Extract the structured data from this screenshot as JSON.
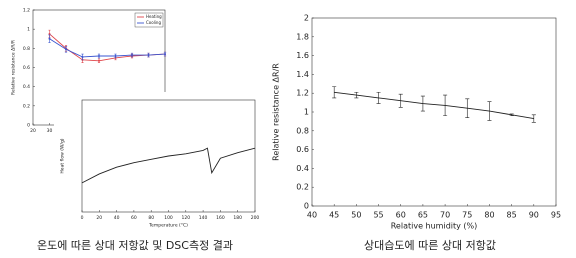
{
  "chart_data": [
    {
      "type": "line",
      "y_label": "Relative resistance ΔR/R",
      "x_label": "Temperature",
      "x": [
        30,
        40,
        50,
        60,
        70,
        80,
        90,
        100
      ],
      "series": [
        {
          "name": "Heating",
          "color": "#e0454a",
          "values": [
            0.95,
            0.8,
            0.68,
            0.67,
            0.7,
            0.72,
            0.73,
            0.74
          ],
          "errors": [
            0.04,
            0.03,
            0.03,
            0.02,
            0.02,
            0.02,
            0.02,
            0.02
          ]
        },
        {
          "name": "Cooling",
          "color": "#3a55d0",
          "values": [
            0.9,
            0.79,
            0.71,
            0.72,
            0.72,
            0.73,
            0.73,
            0.74
          ],
          "errors": [
            0.04,
            0.03,
            0.03,
            0.02,
            0.02,
            0.02,
            0.02,
            0.02
          ]
        }
      ],
      "xlim": [
        20,
        100
      ],
      "xticks": [
        20,
        30,
        40,
        50,
        60,
        70,
        80,
        90,
        100
      ],
      "ylim": [
        0,
        1.2
      ],
      "yticks": [
        0,
        0.2,
        0.4,
        0.6,
        0.8,
        1,
        1.2
      ],
      "legend": "upper right"
    },
    {
      "type": "line",
      "y_label": "Heat flow (W/g)",
      "x_label": "Temperature (°C)",
      "x": [
        0,
        20,
        40,
        60,
        80,
        100,
        120,
        140,
        145,
        150,
        160,
        180,
        200
      ],
      "series": [
        {
          "color": "#222222",
          "values": [
            0.26,
            0.34,
            0.4,
            0.44,
            0.47,
            0.5,
            0.52,
            0.55,
            0.57,
            0.35,
            0.48,
            0.53,
            0.57
          ]
        }
      ],
      "xlim": [
        0,
        200
      ],
      "xticks": [
        0,
        20,
        40,
        60,
        80,
        100,
        120,
        140,
        160,
        180,
        200
      ],
      "ylim": [
        0,
        1
      ]
    },
    {
      "type": "line",
      "y_label": "Relative resistance ΔR/R",
      "x_label": "Relative humidity (%)",
      "x": [
        45,
        50,
        55,
        60,
        65,
        70,
        75,
        80,
        85,
        90
      ],
      "series": [
        {
          "color": "#222222",
          "values": [
            1.21,
            1.18,
            1.15,
            1.12,
            1.09,
            1.07,
            1.04,
            1.01,
            0.97,
            0.93
          ],
          "errors": [
            0.06,
            0.03,
            0.06,
            0.07,
            0.08,
            0.11,
            0.1,
            0.1,
            0.01,
            0.04
          ]
        }
      ],
      "xlim": [
        40,
        95
      ],
      "xticks": [
        40,
        45,
        50,
        55,
        60,
        65,
        70,
        75,
        80,
        85,
        90,
        95
      ],
      "ylim": [
        0,
        2
      ],
      "yticks": [
        0,
        0.2,
        0.4,
        0.6,
        0.8,
        1,
        1.2,
        1.4,
        1.6,
        1.8,
        2
      ]
    }
  ],
  "captions": [
    "온도에 따른 상대 저항값 및 DSC측정 결과",
    "상대습도에 따른 상대 저항값"
  ]
}
